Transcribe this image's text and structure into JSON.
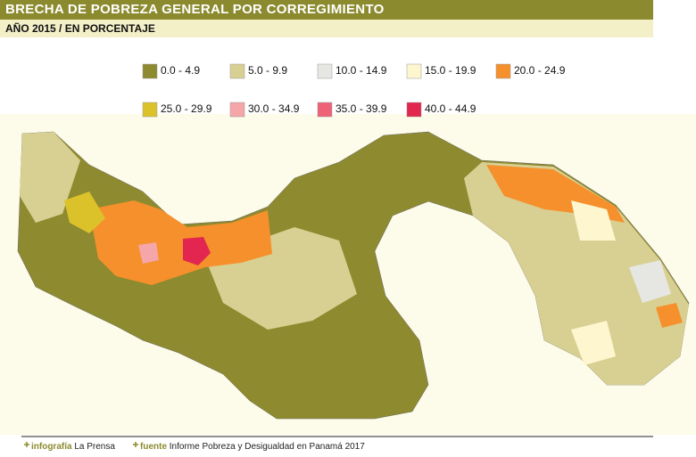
{
  "header": {
    "title": "BRECHA DE POBREZA GENERAL POR CORREGIMIENTO",
    "subtitle": "AÑO 2015 / EN PORCENTAJE"
  },
  "legend": [
    {
      "label": "0.0 - 4.9",
      "color": "#8e8a2f"
    },
    {
      "label": "5.0 - 9.9",
      "color": "#d8d092"
    },
    {
      "label": "10.0 - 14.9",
      "color": "#e6e6e3"
    },
    {
      "label": "15.0 - 19.9",
      "color": "#fdf6cf"
    },
    {
      "label": "20.0 - 24.9",
      "color": "#f5902c"
    },
    {
      "label": "25.0 - 29.9",
      "color": "#dcc22a"
    },
    {
      "label": "30.0 - 34.9",
      "color": "#f4a6a8"
    },
    {
      "label": "35.0 - 39.9",
      "color": "#ee6277"
    },
    {
      "label": "40.0 - 44.9",
      "color": "#e2264f"
    }
  ],
  "footer": {
    "credit_label": "infografía",
    "credit": "La Prensa",
    "source_label": "fuente",
    "source": "Informe Pobreza y Desigualdad en Panamá 2017"
  }
}
